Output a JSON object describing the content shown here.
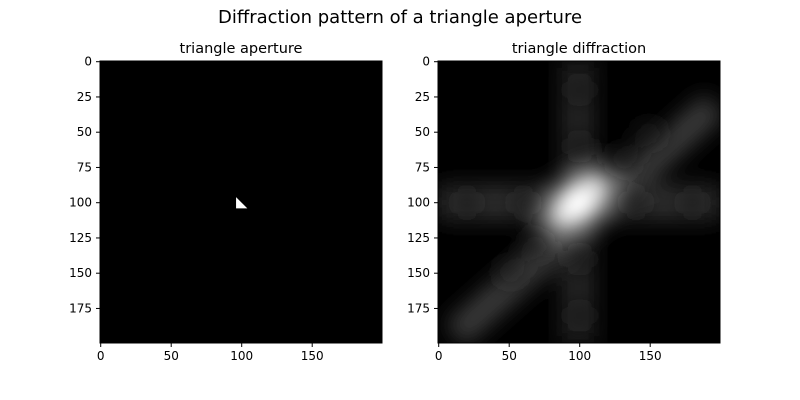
{
  "figure": {
    "title": "Diffraction pattern of a triangle aperture",
    "background": "#ffffff"
  },
  "chart_data": [
    {
      "type": "heatmap",
      "title": "triangle aperture",
      "xlabel": "",
      "ylabel": "",
      "colormap": "gray",
      "image_size": [
        200,
        200
      ],
      "xlim": [
        -0.5,
        199.5
      ],
      "ylim": [
        199.5,
        -0.5
      ],
      "x_ticks": [
        0,
        50,
        100,
        150
      ],
      "y_ticks": [
        0,
        25,
        50,
        75,
        100,
        125,
        150,
        175
      ],
      "grid": false,
      "content": {
        "kind": "filled_triangle",
        "value": 1,
        "background_value": 0,
        "vertices": [
          [
            96,
            96
          ],
          [
            96,
            104
          ],
          [
            104,
            104
          ]
        ]
      }
    },
    {
      "type": "heatmap",
      "title": "triangle diffraction",
      "xlabel": "",
      "ylabel": "",
      "colormap": "gray",
      "image_size": [
        200,
        200
      ],
      "xlim": [
        -0.5,
        199.5
      ],
      "ylim": [
        199.5,
        -0.5
      ],
      "x_ticks": [
        0,
        50,
        100,
        150
      ],
      "y_ticks": [
        0,
        25,
        50,
        75,
        100,
        125,
        150,
        175
      ],
      "grid": false,
      "content": {
        "kind": "fourier_magnitude_of_aperture",
        "center": [
          100,
          100
        ],
        "peak_value": 1,
        "features": [
          "bright elliptical central lobe along main diagonal",
          "faint horizontal band at y≈100",
          "faint vertical band at x≈100",
          "faint diagonal streak"
        ]
      }
    }
  ]
}
